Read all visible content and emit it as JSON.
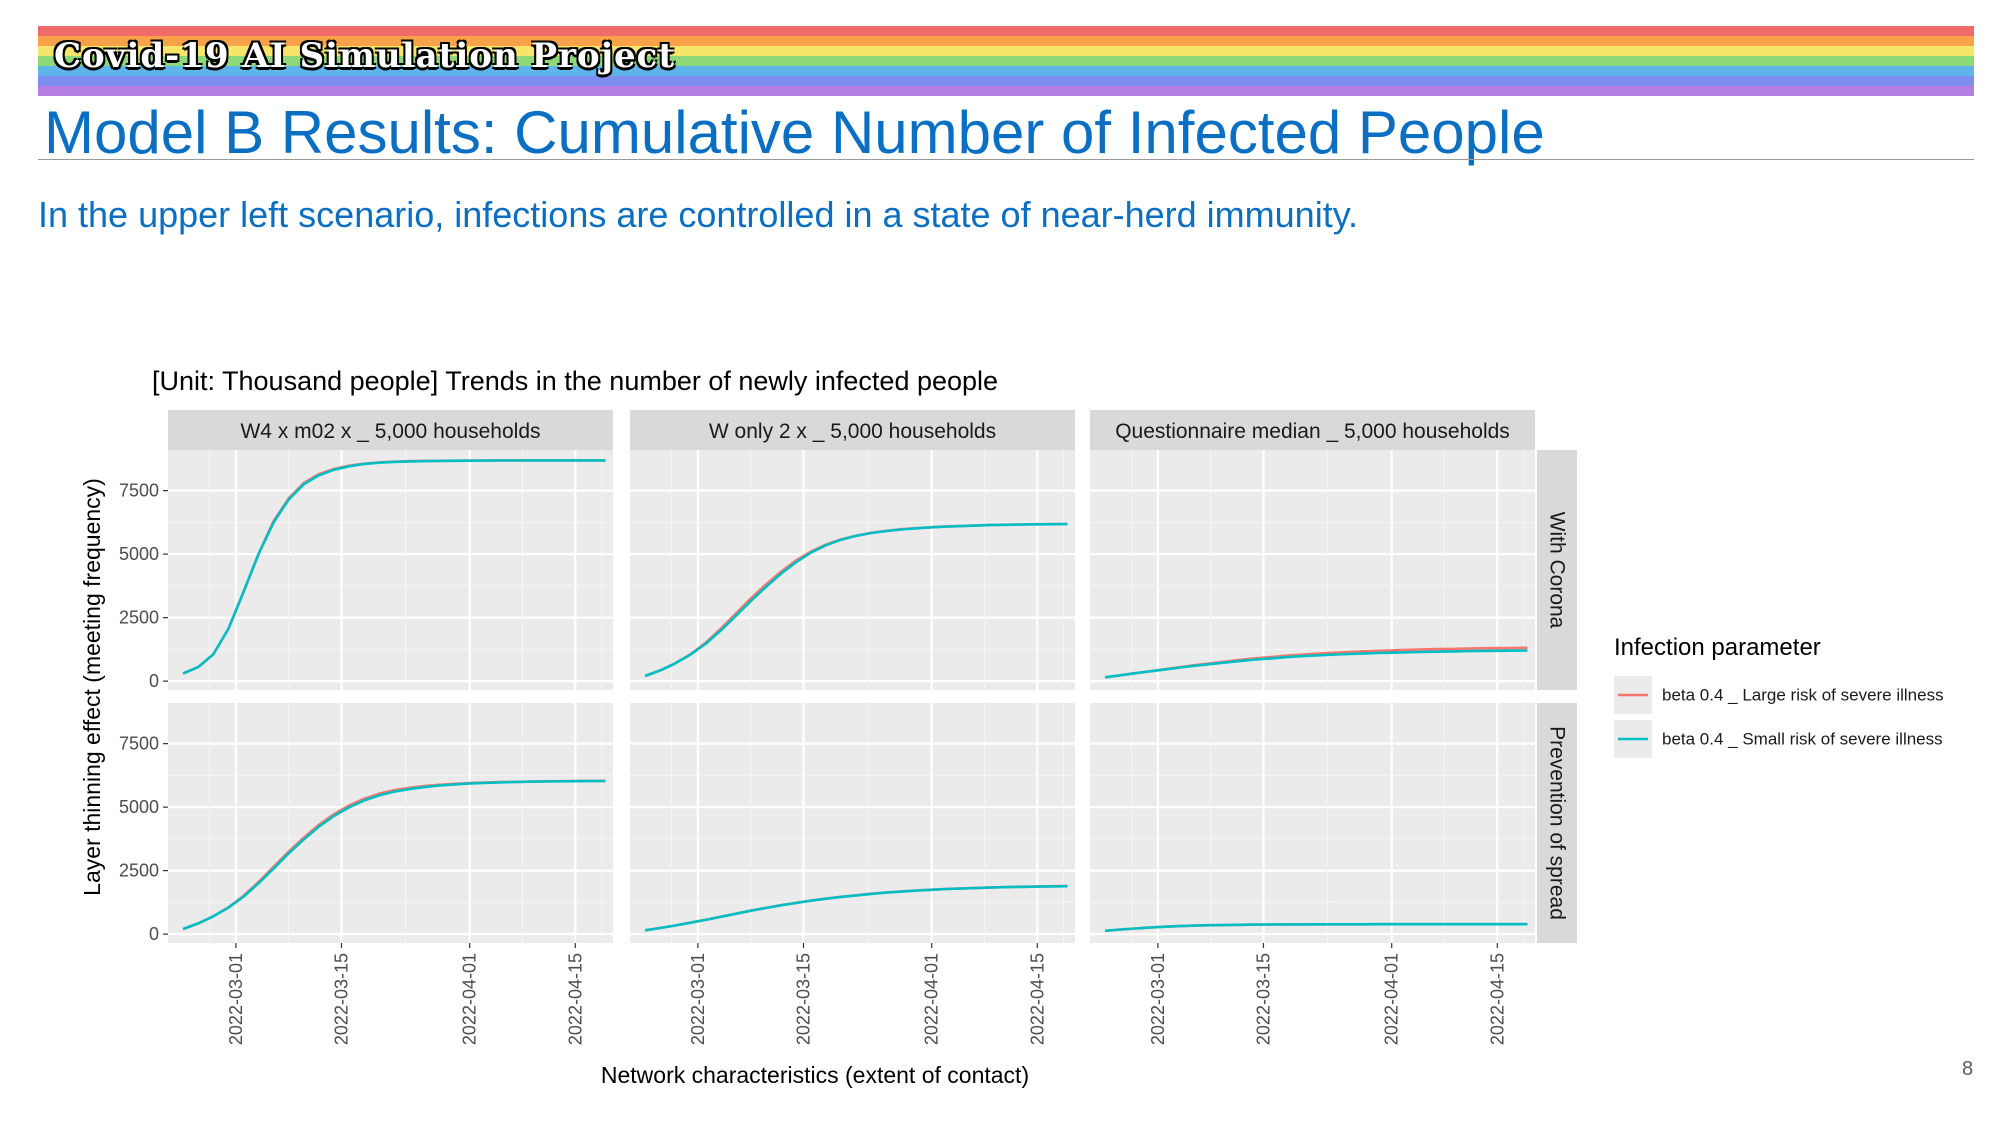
{
  "banner": {
    "text": "Covid-19 AI Simulation Project",
    "colors": [
      "#f26b6b",
      "#f9a24a",
      "#f5e66a",
      "#8fd87a",
      "#5fb4ea",
      "#7d8ef0",
      "#b47fe0"
    ]
  },
  "page": {
    "title": "Model B Results: Cumulative Number of Infected People",
    "subtitle": "In the upper left scenario, infections are controlled in a state of near-herd immunity.",
    "page_number": "8"
  },
  "chart_data": {
    "type": "line",
    "title": "[Unit: Thousand people] Trends in the number of newly infected people",
    "xlabel": "Network characteristics (extent of contact)",
    "ylabel": "Layer thinning effect (meeting frequency)",
    "x_ticks": [
      "2022-03-01",
      "2022-03-15",
      "2022-04-01",
      "2022-04-15"
    ],
    "y_ticks": [
      "0",
      "2500",
      "5000",
      "7500"
    ],
    "xlim": [
      "2022-02-20",
      "2022-04-20"
    ],
    "ylim": [
      -350,
      9100
    ],
    "x": [
      "2022-02-22",
      "2022-02-24",
      "2022-02-26",
      "2022-02-28",
      "2022-03-02",
      "2022-03-04",
      "2022-03-06",
      "2022-03-08",
      "2022-03-10",
      "2022-03-12",
      "2022-03-14",
      "2022-03-16",
      "2022-03-18",
      "2022-03-20",
      "2022-03-22",
      "2022-03-24",
      "2022-03-26",
      "2022-03-28",
      "2022-03-30",
      "2022-04-01",
      "2022-04-03",
      "2022-04-05",
      "2022-04-07",
      "2022-04-09",
      "2022-04-11",
      "2022-04-13",
      "2022-04-15",
      "2022-04-17",
      "2022-04-19"
    ],
    "legend": {
      "title": "Infection parameter",
      "position": "right",
      "entries": [
        {
          "name": "beta 0.4 _ Large risk of severe illness",
          "color": "#f8766d"
        },
        {
          "name": "beta 0.4 _ Small risk of severe illness",
          "color": "#00bfc4"
        }
      ]
    },
    "columns": [
      "W4 x m02 x _ 5,000 households",
      "W only 2 x _ 5,000 households",
      "Questionnaire median _ 5,000 households"
    ],
    "rows": [
      "With Corona",
      "Prevention of spread"
    ],
    "panels": [
      {
        "row": 0,
        "col": 0,
        "series": [
          {
            "name": "beta 0.4 _ Large risk of severe illness",
            "values": [
              300,
              550,
              1050,
              2050,
              3500,
              5000,
              6300,
              7200,
              7800,
              8150,
              8350,
              8480,
              8560,
              8610,
              8640,
              8660,
              8670,
              8675,
              8680,
              8685,
              8688,
              8690,
              8690,
              8690,
              8690,
              8690,
              8690,
              8690,
              8690
            ]
          },
          {
            "name": "beta 0.4 _ Small risk of severe illness",
            "values": [
              300,
              550,
              1050,
              2050,
              3500,
              5000,
              6250,
              7150,
              7750,
              8100,
              8320,
              8460,
              8550,
              8600,
              8630,
              8650,
              8660,
              8670,
              8675,
              8680,
              8684,
              8686,
              8688,
              8689,
              8690,
              8690,
              8690,
              8690,
              8690
            ]
          }
        ]
      },
      {
        "row": 0,
        "col": 1,
        "series": [
          {
            "name": "beta 0.4 _ Large risk of severe illness",
            "values": [
              200,
              420,
              700,
              1050,
              1500,
              2050,
              2650,
              3250,
              3800,
              4300,
              4750,
              5100,
              5380,
              5580,
              5730,
              5840,
              5920,
              5980,
              6020,
              6060,
              6090,
              6110,
              6130,
              6150,
              6160,
              6170,
              6180,
              6185,
              6190
            ]
          },
          {
            "name": "beta 0.4 _ Small risk of severe illness",
            "values": [
              200,
              420,
              700,
              1040,
              1460,
              1980,
              2560,
              3150,
              3700,
              4220,
              4680,
              5060,
              5350,
              5570,
              5720,
              5830,
              5910,
              5970,
              6015,
              6055,
              6085,
              6105,
              6125,
              6145,
              6155,
              6165,
              6175,
              6180,
              6185
            ]
          }
        ]
      },
      {
        "row": 0,
        "col": 2,
        "series": [
          {
            "name": "beta 0.4 _ Large risk of severe illness",
            "values": [
              150,
              230,
              310,
              390,
              470,
              550,
              630,
              700,
              770,
              840,
              900,
              950,
              1000,
              1040,
              1080,
              1110,
              1140,
              1170,
              1190,
              1210,
              1230,
              1250,
              1260,
              1270,
              1280,
              1290,
              1300,
              1305,
              1310
            ]
          },
          {
            "name": "beta 0.4 _ Small risk of severe illness",
            "values": [
              150,
              230,
              310,
              385,
              460,
              535,
              605,
              670,
              735,
              795,
              850,
              895,
              940,
              980,
              1010,
              1040,
              1065,
              1085,
              1105,
              1120,
              1135,
              1150,
              1160,
              1170,
              1180,
              1190,
              1195,
              1200,
              1205
            ]
          }
        ]
      },
      {
        "row": 1,
        "col": 0,
        "series": [
          {
            "name": "beta 0.4 _ Large risk of severe illness",
            "values": [
              200,
              420,
              700,
              1050,
              1500,
              2050,
              2650,
              3250,
              3800,
              4300,
              4720,
              5060,
              5330,
              5530,
              5670,
              5760,
              5830,
              5880,
              5920,
              5950,
              5970,
              5985,
              5995,
              6005,
              6015,
              6020,
              6025,
              6030,
              6035
            ]
          },
          {
            "name": "beta 0.4 _ Small risk of severe illness",
            "values": [
              200,
              420,
              700,
              1040,
              1470,
              2000,
              2580,
              3180,
              3730,
              4230,
              4650,
              4990,
              5260,
              5460,
              5610,
              5710,
              5790,
              5850,
              5895,
              5930,
              5955,
              5975,
              5990,
              6000,
              6010,
              6015,
              6020,
              6025,
              6030
            ]
          }
        ]
      },
      {
        "row": 1,
        "col": 1,
        "series": [
          {
            "name": "beta 0.4 _ Large risk of severe illness",
            "values": [
              150,
              240,
              340,
              450,
              560,
              680,
              800,
              920,
              1030,
              1140,
              1230,
              1320,
              1400,
              1470,
              1530,
              1590,
              1640,
              1680,
              1720,
              1750,
              1780,
              1800,
              1820,
              1840,
              1855,
              1865,
              1875,
              1885,
              1890
            ]
          },
          {
            "name": "beta 0.4 _ Small risk of severe illness",
            "values": [
              150,
              240,
              340,
              450,
              560,
              680,
              800,
              920,
              1030,
              1135,
              1225,
              1315,
              1395,
              1465,
              1525,
              1585,
              1635,
              1675,
              1715,
              1745,
              1775,
              1795,
              1815,
              1835,
              1850,
              1860,
              1870,
              1880,
              1885
            ]
          }
        ]
      },
      {
        "row": 1,
        "col": 2,
        "series": [
          {
            "name": "beta 0.4 _ Large risk of severe illness",
            "values": [
              130,
              180,
              220,
              260,
              290,
              315,
              335,
              350,
              360,
              368,
              374,
              378,
              381,
              383,
              385,
              386,
              387,
              388,
              389,
              390,
              390,
              390,
              390,
              390,
              390,
              390,
              390,
              390,
              390
            ]
          },
          {
            "name": "beta 0.4 _ Small risk of severe illness",
            "values": [
              130,
              180,
              220,
              260,
              290,
              315,
              335,
              350,
              360,
              368,
              374,
              378,
              381,
              383,
              385,
              386,
              387,
              388,
              389,
              390,
              390,
              390,
              390,
              390,
              390,
              390,
              390,
              390,
              390
            ]
          }
        ]
      }
    ]
  }
}
